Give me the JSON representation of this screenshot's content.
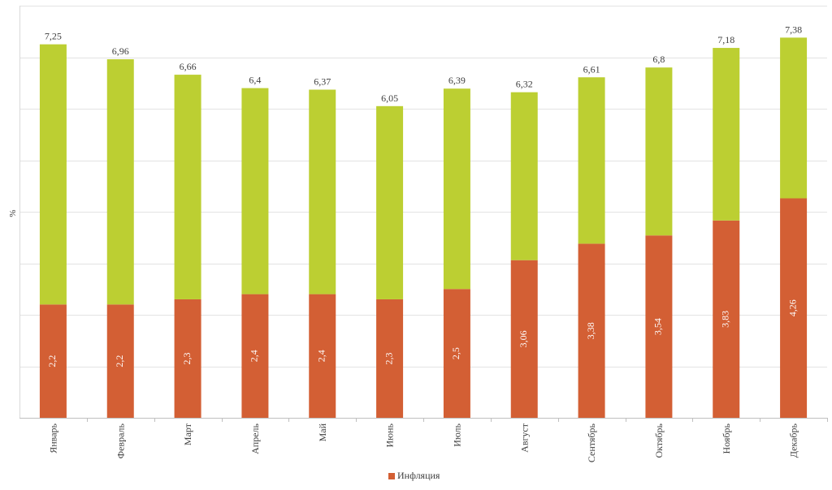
{
  "chart_data": {
    "type": "bar",
    "stacked": true,
    "categories": [
      "Январь",
      "Февраль",
      "Март",
      "Апрель",
      "Май",
      "Июнь",
      "Июль",
      "Август",
      "Сентябрь",
      "Октябрь",
      "Ноябрь",
      "Декабрь"
    ],
    "series": [
      {
        "name": "Инфляция",
        "color": "#d35f34",
        "values": [
          2.2,
          2.2,
          2.3,
          2.4,
          2.4,
          2.3,
          2.5,
          3.06,
          3.38,
          3.54,
          3.83,
          4.26
        ],
        "labels": [
          "2,2",
          "2,2",
          "2,3",
          "2,4",
          "2,4",
          "2,3",
          "2,5",
          "3,06",
          "3,38",
          "3,54",
          "3,83",
          "4,26"
        ]
      },
      {
        "name": "",
        "color": "#bccf32",
        "values": [
          5.05,
          4.76,
          4.36,
          4.0,
          3.97,
          3.75,
          3.89,
          3.26,
          3.23,
          3.26,
          3.35,
          3.12
        ]
      }
    ],
    "totals": [
      7.25,
      6.96,
      6.66,
      6.4,
      6.37,
      6.05,
      6.39,
      6.32,
      6.61,
      6.8,
      7.18,
      7.38
    ],
    "total_labels": [
      "7,25",
      "6,96",
      "6,66",
      "6,4",
      "6,37",
      "6,05",
      "6,39",
      "6,32",
      "6,61",
      "6,8",
      "7,18",
      "7,38"
    ],
    "title": "",
    "xlabel": "",
    "ylabel": "%",
    "ylim": [
      0,
      8
    ],
    "grid": true,
    "legend": "bottom"
  }
}
